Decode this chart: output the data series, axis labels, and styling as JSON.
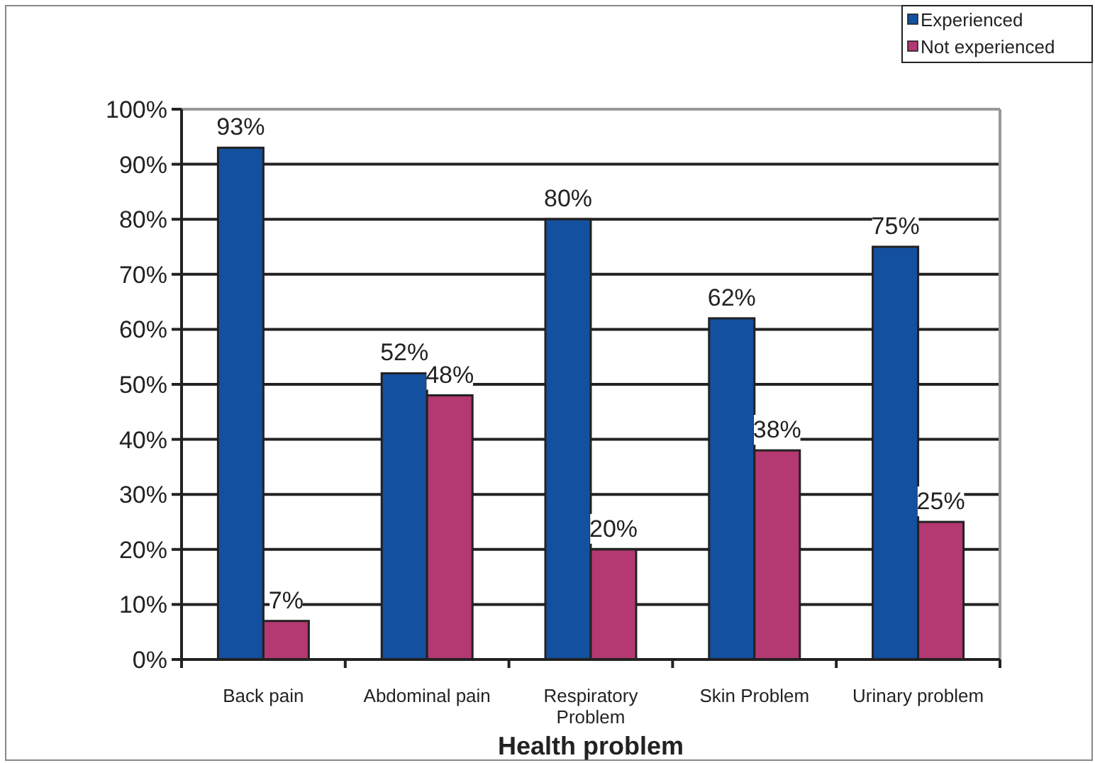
{
  "chart_data": {
    "type": "bar",
    "xlabel": "Health problem",
    "categories": [
      "Back pain",
      "Abdominal pain",
      "Respiratory Problem",
      "Skin Problem",
      "Urinary problem"
    ],
    "series": [
      {
        "name": "Experienced",
        "color": "#1450a0",
        "values": [
          93,
          52,
          80,
          62,
          75
        ],
        "value_labels": [
          "93%",
          "52%",
          "80%",
          "62%",
          "75%"
        ]
      },
      {
        "name": "Not experienced",
        "color": "#b43872",
        "values": [
          7,
          48,
          20,
          38,
          25
        ],
        "value_labels": [
          "7%",
          "48%",
          "20%",
          "38%",
          "25%"
        ]
      }
    ],
    "ylim": [
      0,
      100
    ],
    "yticks": [
      {
        "value": 0,
        "label": "0%"
      },
      {
        "value": 10,
        "label": "10%"
      },
      {
        "value": 20,
        "label": "20%"
      },
      {
        "value": 30,
        "label": "30%"
      },
      {
        "value": 40,
        "label": "40%"
      },
      {
        "value": 50,
        "label": "50%"
      },
      {
        "value": 60,
        "label": "60%"
      },
      {
        "value": 70,
        "label": "70%"
      },
      {
        "value": 80,
        "label": "80%"
      },
      {
        "value": 90,
        "label": "90%"
      },
      {
        "value": 100,
        "label": "100%"
      }
    ],
    "grid": "y",
    "legend": "top right"
  }
}
